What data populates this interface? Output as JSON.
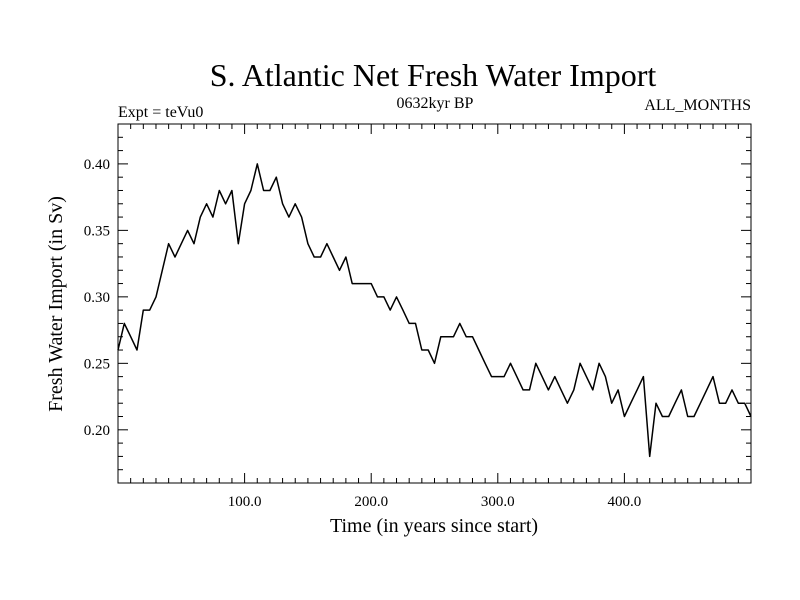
{
  "chart_data": {
    "type": "line",
    "title": "S. Atlantic Net Fresh Water Import",
    "subtitle_left": "Expt = teVu0",
    "subtitle_center": "0632kyr BP",
    "subtitle_right": "ALL_MONTHS",
    "xlabel": "Time (in years since start)",
    "ylabel": "Fresh Water Import (in Sv)",
    "xlim": [
      0,
      500
    ],
    "ylim": [
      0.16,
      0.43
    ],
    "xticks": [
      100,
      200,
      300,
      400
    ],
    "xtick_labels": [
      "100.0",
      "200.0",
      "300.0",
      "400.0"
    ],
    "yticks": [
      0.2,
      0.25,
      0.3,
      0.35,
      0.4
    ],
    "ytick_labels": [
      "0.20",
      "0.25",
      "0.30",
      "0.35",
      "0.40"
    ],
    "grid": false,
    "series": [
      {
        "x": [
          0,
          5,
          10,
          15,
          20,
          25,
          30,
          35,
          40,
          45,
          50,
          55,
          60,
          65,
          70,
          75,
          80,
          85,
          90,
          95,
          100,
          105,
          110,
          115,
          120,
          125,
          130,
          135,
          140,
          145,
          150,
          155,
          160,
          165,
          170,
          175,
          180,
          185,
          190,
          195,
          200,
          205,
          210,
          215,
          220,
          225,
          230,
          235,
          240,
          245,
          250,
          255,
          260,
          265,
          270,
          275,
          280,
          285,
          290,
          295,
          300,
          305,
          310,
          315,
          320,
          325,
          330,
          335,
          340,
          345,
          350,
          355,
          360,
          365,
          370,
          375,
          380,
          385,
          390,
          395,
          400,
          405,
          410,
          415,
          420,
          425,
          430,
          435,
          440,
          445,
          450,
          455,
          460,
          465,
          470,
          475,
          480,
          485,
          490,
          495,
          500
        ],
        "y": [
          0.26,
          0.28,
          0.27,
          0.26,
          0.29,
          0.29,
          0.3,
          0.32,
          0.34,
          0.33,
          0.34,
          0.35,
          0.34,
          0.36,
          0.37,
          0.36,
          0.38,
          0.37,
          0.38,
          0.34,
          0.37,
          0.38,
          0.4,
          0.38,
          0.38,
          0.39,
          0.37,
          0.36,
          0.37,
          0.36,
          0.34,
          0.33,
          0.33,
          0.34,
          0.33,
          0.32,
          0.33,
          0.31,
          0.31,
          0.31,
          0.31,
          0.3,
          0.3,
          0.29,
          0.3,
          0.29,
          0.28,
          0.28,
          0.26,
          0.26,
          0.25,
          0.27,
          0.27,
          0.27,
          0.28,
          0.27,
          0.27,
          0.26,
          0.25,
          0.24,
          0.24,
          0.24,
          0.25,
          0.24,
          0.23,
          0.23,
          0.25,
          0.24,
          0.23,
          0.24,
          0.23,
          0.22,
          0.23,
          0.25,
          0.24,
          0.23,
          0.25,
          0.24,
          0.22,
          0.23,
          0.21,
          0.22,
          0.23,
          0.24,
          0.18,
          0.22,
          0.21,
          0.21,
          0.22,
          0.23,
          0.21,
          0.21,
          0.22,
          0.23,
          0.24,
          0.22,
          0.22,
          0.23,
          0.22,
          0.22,
          0.21
        ]
      }
    ]
  }
}
